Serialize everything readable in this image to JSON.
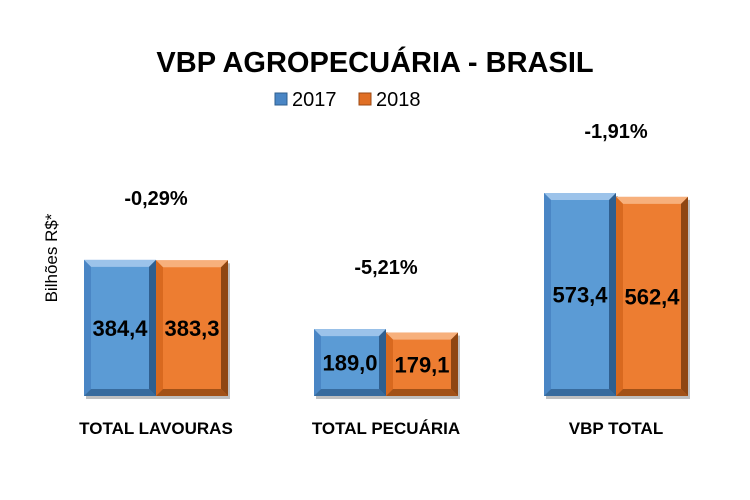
{
  "chart_data": {
    "type": "bar",
    "title": "VBP AGROPECUÁRIA - BRASIL",
    "ylabel": "Bilhões R$*",
    "xlabel": "",
    "categories": [
      "TOTAL LAVOURAS",
      "TOTAL PECUÁRIA",
      "VBP TOTAL"
    ],
    "series": [
      {
        "name": "2017",
        "values": [
          384.4,
          189.0,
          573.4
        ],
        "labels": [
          "384,4",
          "189,0",
          "573,4"
        ],
        "color": "#5b9bd5"
      },
      {
        "name": "2018",
        "values": [
          383.3,
          179.1,
          562.4
        ],
        "labels": [
          "383,3",
          "179,1",
          "562,4"
        ],
        "color": "#ed7d31"
      }
    ],
    "annotations": [
      "-0,29%",
      "-5,21%",
      "-1,91%"
    ],
    "ylim": [
      0,
      600
    ],
    "grid": false,
    "legend_position": "top-center"
  }
}
